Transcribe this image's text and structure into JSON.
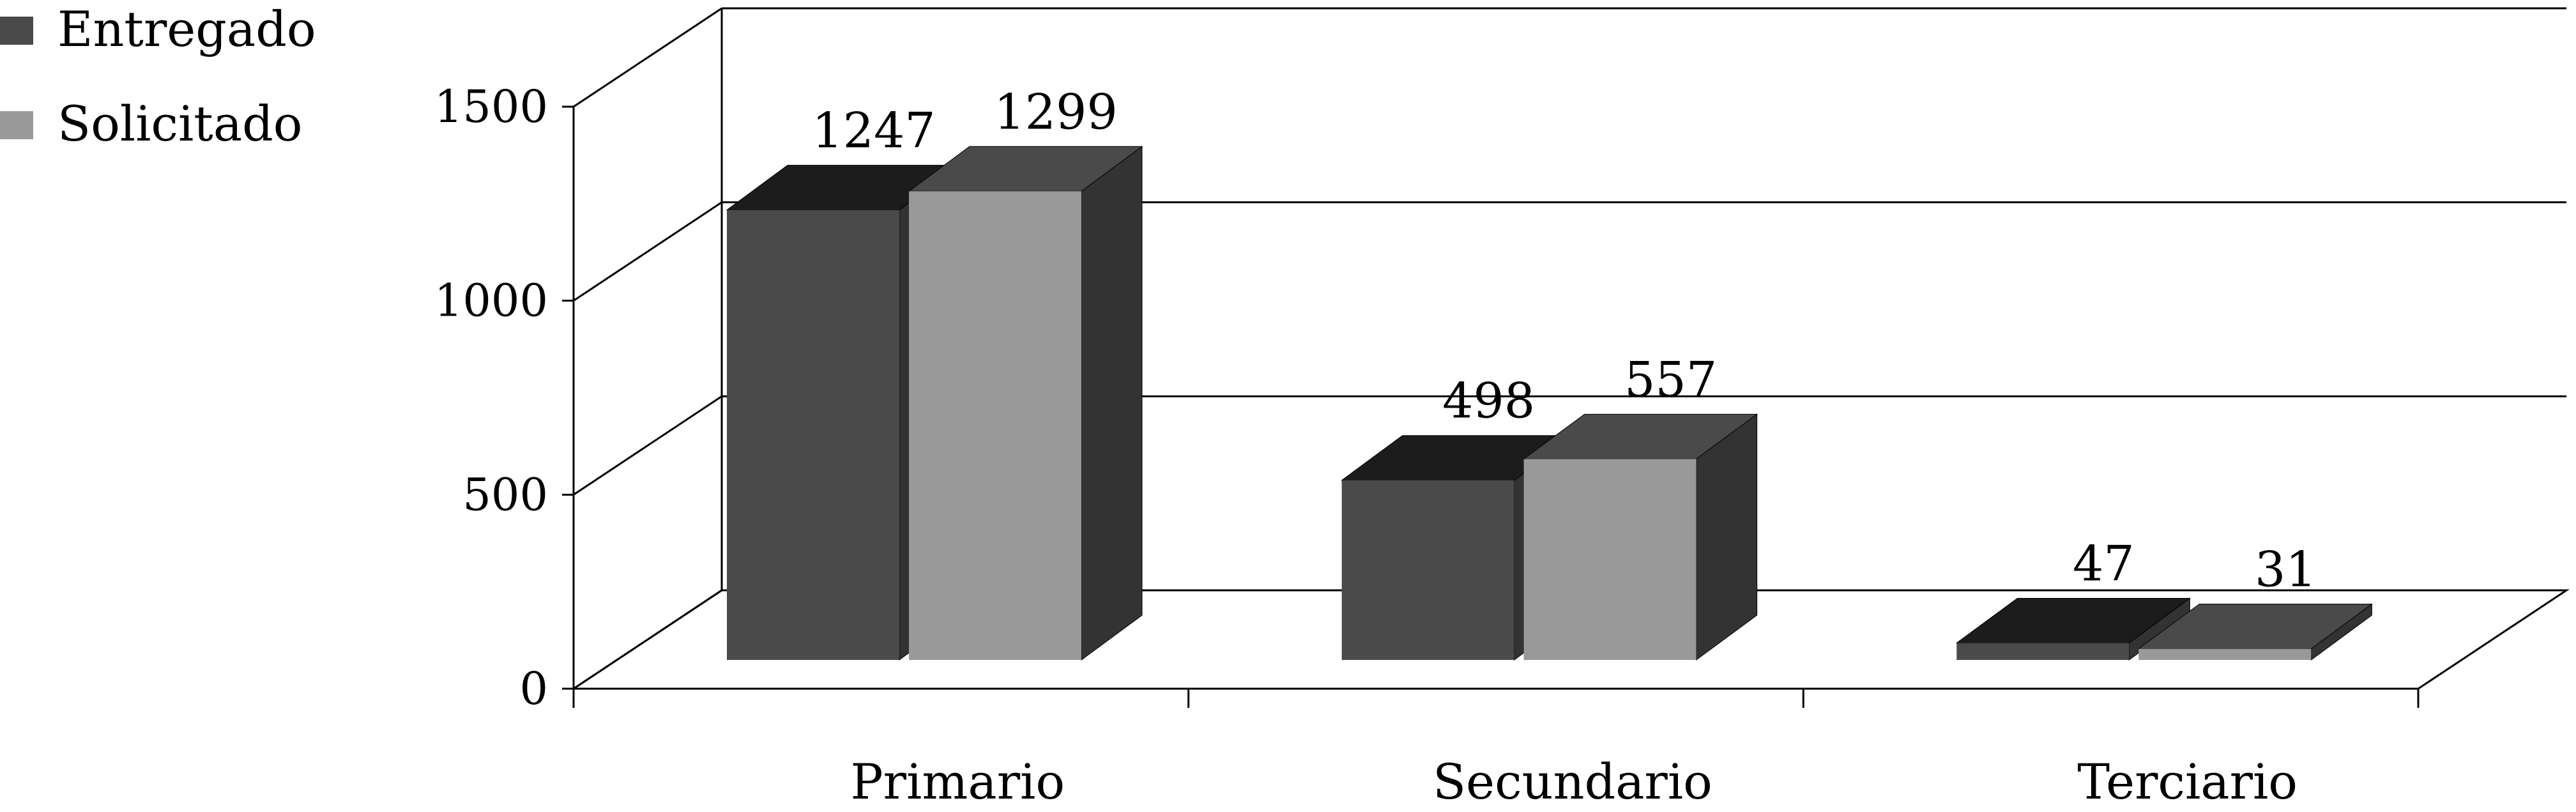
{
  "chart_data": {
    "type": "bar",
    "categories": [
      "Primario",
      "Secundario",
      "Terciario"
    ],
    "series": [
      {
        "name": "Entregado",
        "values": [
          1247,
          498,
          47
        ]
      },
      {
        "name": "Solicitado",
        "values": [
          1299,
          557,
          31
        ]
      }
    ],
    "ylim": [
      0,
      1500
    ],
    "yticks": [
      "0",
      "500",
      "1000",
      "1500"
    ],
    "grid": true,
    "legend": "top-left",
    "style": "3d-bar",
    "colors": {
      "Entregado": {
        "front": "#4a4a4a",
        "top": "#1c1c1c",
        "side": "#333333"
      },
      "Solicitado": {
        "front": "#999999",
        "top": "#4a4a4a",
        "side": "#333333"
      }
    }
  }
}
